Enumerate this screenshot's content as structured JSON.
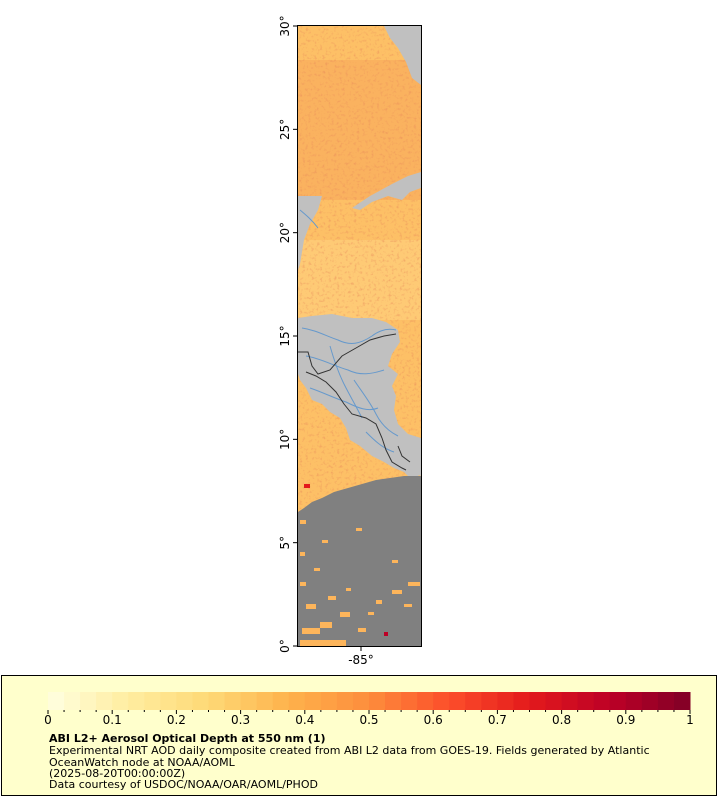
{
  "map": {
    "lat_ticks": [
      "0°",
      "5°",
      "10°",
      "15°",
      "20°",
      "25°",
      "30°"
    ],
    "lon_ticks": [
      "-85°"
    ],
    "colors": {
      "land": "#c0c0c0",
      "no_data_ocean": "#808080",
      "rivers": "#6699cc",
      "borders": "#333333",
      "coastline": "#808080"
    }
  },
  "colorbar": {
    "ticks": [
      "0",
      "0.1",
      "0.2",
      "0.3",
      "0.4",
      "0.5",
      "0.6",
      "0.7",
      "0.8",
      "0.9",
      "1"
    ],
    "min": 0,
    "max": 1,
    "colors": [
      "#ffffe0",
      "#ffeda0",
      "#fed976",
      "#feb24c",
      "#fd8d3c",
      "#fc4e2a",
      "#e31a1c",
      "#bd0026",
      "#800026"
    ]
  },
  "legend": {
    "title": "ABI L2+ Aerosol Optical Depth at 550 nm (1)",
    "description": "Experimental NRT AOD daily composite created from ABI L2 data from GOES-19. Fields generated by Atlantic OceanWatch node at NOAA/AOML",
    "date": "(2025-08-20T00:00:00Z)",
    "credit": "Data courtesy of USDOC/NOAA/OAR/AOML/PHOD"
  }
}
